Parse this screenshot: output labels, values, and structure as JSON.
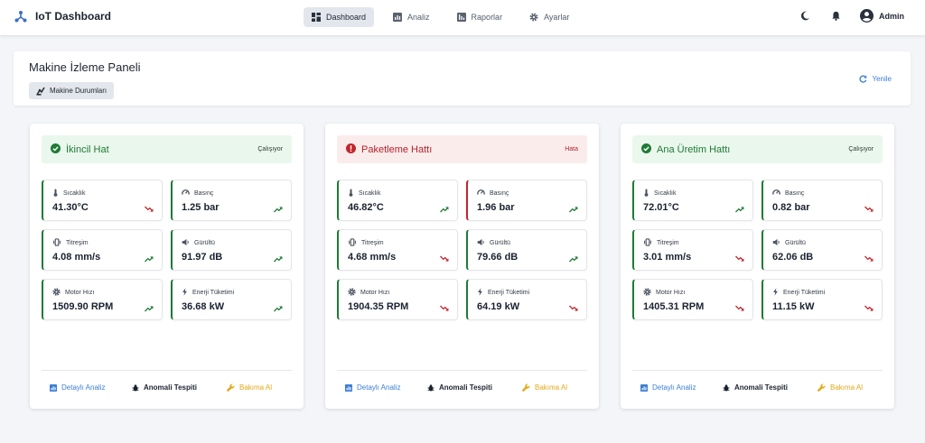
{
  "app": {
    "title": "IoT Dashboard"
  },
  "nav": [
    {
      "label": "Dashboard",
      "icon": "dashboard-icon",
      "active": true
    },
    {
      "label": "Analiz",
      "icon": "analytics-icon",
      "active": false
    },
    {
      "label": "Raporlar",
      "icon": "reports-icon",
      "active": false
    },
    {
      "label": "Ayarlar",
      "icon": "settings-icon",
      "active": false
    }
  ],
  "user": {
    "name": "Admin"
  },
  "panel": {
    "title": "Makine İzleme Paneli",
    "status_button": "Makine Durumları",
    "refresh": "Yenile"
  },
  "labels": {
    "temp": "Sıcaklık",
    "pressure": "Basınç",
    "vibration": "Titreşim",
    "noise": "Gürültü",
    "motor": "Motor Hızı",
    "energy": "Enerji Tüketimi"
  },
  "actions": {
    "detail": "Detaylı Analiz",
    "anomaly": "Anomali Tespiti",
    "maintenance": "Bakıma Al"
  },
  "colors": {
    "ok": "#1f7a37",
    "error": "#c0262d",
    "up": "#1f7a37",
    "down": "#c0262d",
    "link": "#3d7fd4",
    "warn": "#e4a818"
  },
  "machines": [
    {
      "name": "İkincil Hat",
      "status": "Çalışıyor",
      "ok": true,
      "metrics": [
        {
          "value": "41.30°C",
          "trend": "down",
          "bad": false
        },
        {
          "value": "1.25 bar",
          "trend": "up",
          "bad": false
        },
        {
          "value": "4.08 mm/s",
          "trend": "up",
          "bad": false
        },
        {
          "value": "91.97 dB",
          "trend": "up",
          "bad": false
        },
        {
          "value": "1509.90 RPM",
          "trend": "up",
          "bad": false
        },
        {
          "value": "36.68 kW",
          "trend": "up",
          "bad": false
        }
      ]
    },
    {
      "name": "Paketleme Hattı",
      "status": "Hata",
      "ok": false,
      "metrics": [
        {
          "value": "46.82°C",
          "trend": "up",
          "bad": false
        },
        {
          "value": "1.96 bar",
          "trend": "up",
          "bad": true
        },
        {
          "value": "4.68 mm/s",
          "trend": "down",
          "bad": false
        },
        {
          "value": "79.66 dB",
          "trend": "up",
          "bad": false
        },
        {
          "value": "1904.35 RPM",
          "trend": "down",
          "bad": false
        },
        {
          "value": "64.19 kW",
          "trend": "down",
          "bad": false
        }
      ]
    },
    {
      "name": "Ana Üretim Hattı",
      "status": "Çalışıyor",
      "ok": true,
      "metrics": [
        {
          "value": "72.01°C",
          "trend": "up",
          "bad": false
        },
        {
          "value": "0.82 bar",
          "trend": "down",
          "bad": false
        },
        {
          "value": "3.01 mm/s",
          "trend": "down",
          "bad": false
        },
        {
          "value": "62.06 dB",
          "trend": "down",
          "bad": false
        },
        {
          "value": "1405.31 RPM",
          "trend": "down",
          "bad": false
        },
        {
          "value": "11.15 kW",
          "trend": "down",
          "bad": false
        }
      ]
    }
  ]
}
